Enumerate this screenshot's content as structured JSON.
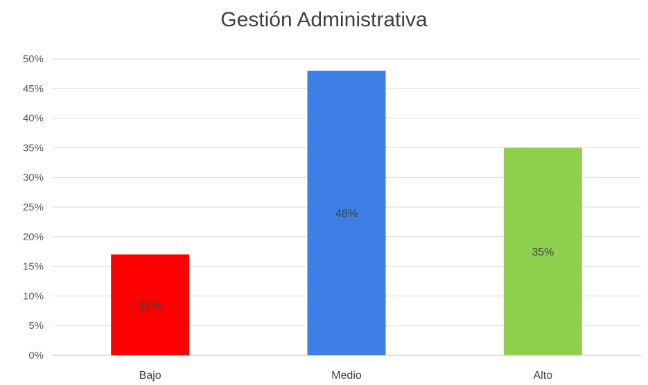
{
  "chart_data": {
    "type": "bar",
    "title": "Gestión Administrativa",
    "categories": [
      "Bajo",
      "Medio",
      "Alto"
    ],
    "values": [
      17,
      48,
      35
    ],
    "data_labels": [
      "17%",
      "48%",
      "35%"
    ],
    "colors": [
      "#ff0000",
      "#3d7fe6",
      "#8fd14f"
    ],
    "ylim": [
      0,
      50
    ],
    "yticks": [
      "0%",
      "5%",
      "10%",
      "15%",
      "20%",
      "25%",
      "30%",
      "35%",
      "40%",
      "45%",
      "50%"
    ],
    "xlabel": "",
    "ylabel": "",
    "grid": true,
    "legend": "none"
  }
}
